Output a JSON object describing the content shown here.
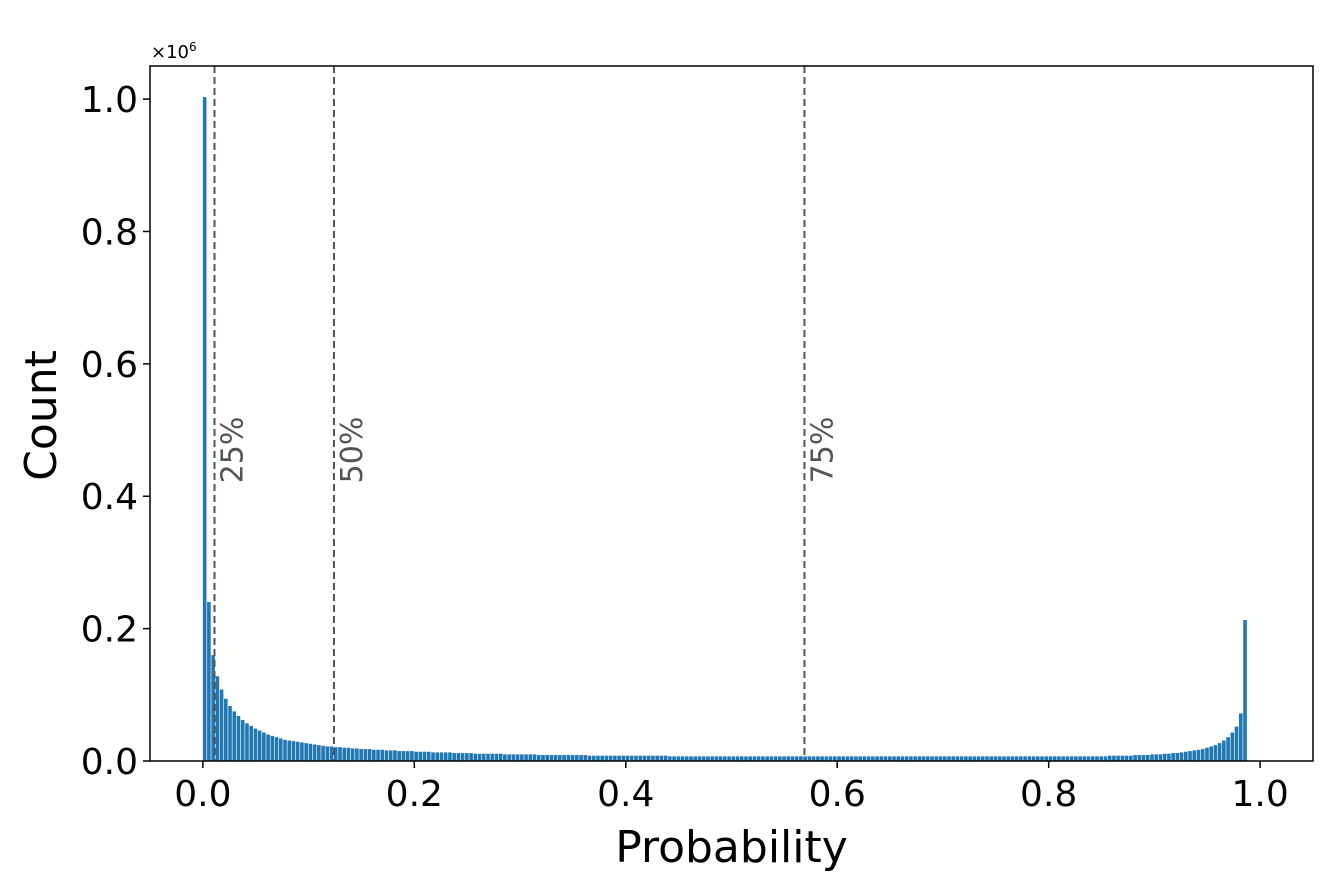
{
  "chart_data": {
    "type": "bar",
    "xlabel": "Probability",
    "ylabel": "Count",
    "y_multiplier": "×10",
    "y_multiplier_exponent": "6",
    "scale": 1000000,
    "xlim": [
      -0.05,
      1.05
    ],
    "ylim": [
      0,
      1.05
    ],
    "xticks": [
      0.0,
      0.2,
      0.4,
      0.6,
      0.8,
      1.0
    ],
    "xtick_labels": [
      "0.0",
      "0.2",
      "0.4",
      "0.6",
      "0.8",
      "1.0"
    ],
    "yticks": [
      0.0,
      0.2,
      0.4,
      0.6,
      0.8,
      1.0
    ],
    "ytick_labels": [
      "0.0",
      "0.2",
      "0.4",
      "0.6",
      "0.8",
      "1.0"
    ],
    "bar_color": "#1f77b4",
    "bins": 250,
    "series": [
      {
        "bin_centers": [
          0.002,
          0.006,
          0.01,
          0.014,
          0.018,
          0.022,
          0.026,
          0.03,
          0.034,
          0.038,
          0.042,
          0.046,
          0.05,
          0.054,
          0.058,
          0.062,
          0.066,
          0.07,
          0.074,
          0.078,
          0.082,
          0.086,
          0.09,
          0.094,
          0.098,
          0.102,
          0.106,
          0.11,
          0.114,
          0.118,
          0.122,
          0.126,
          0.13,
          0.134,
          0.138,
          0.142,
          0.146,
          0.15,
          0.154,
          0.158,
          0.162,
          0.166,
          0.17,
          0.174,
          0.178,
          0.182,
          0.186,
          0.19,
          0.194,
          0.198,
          0.202,
          0.206,
          0.21,
          0.214,
          0.218,
          0.222,
          0.226,
          0.23,
          0.234,
          0.238,
          0.242,
          0.246,
          0.25,
          0.254,
          0.258,
          0.262,
          0.266,
          0.27,
          0.274,
          0.278,
          0.282,
          0.286,
          0.29,
          0.294,
          0.298,
          0.302,
          0.306,
          0.31,
          0.314,
          0.318,
          0.322,
          0.326,
          0.33,
          0.334,
          0.338,
          0.342,
          0.346,
          0.35,
          0.354,
          0.358,
          0.362,
          0.366,
          0.37,
          0.374,
          0.378,
          0.382,
          0.386,
          0.39,
          0.394,
          0.398,
          0.402,
          0.406,
          0.41,
          0.414,
          0.418,
          0.422,
          0.426,
          0.43,
          0.434,
          0.438,
          0.442,
          0.446,
          0.45,
          0.454,
          0.458,
          0.462,
          0.466,
          0.47,
          0.474,
          0.478,
          0.482,
          0.486,
          0.49,
          0.494,
          0.498,
          0.502,
          0.506,
          0.51,
          0.514,
          0.518,
          0.522,
          0.526,
          0.53,
          0.534,
          0.538,
          0.542,
          0.546,
          0.55,
          0.554,
          0.558,
          0.562,
          0.566,
          0.57,
          0.574,
          0.578,
          0.582,
          0.586,
          0.59,
          0.594,
          0.598,
          0.602,
          0.606,
          0.61,
          0.614,
          0.618,
          0.622,
          0.626,
          0.63,
          0.634,
          0.638,
          0.642,
          0.646,
          0.65,
          0.654,
          0.658,
          0.662,
          0.666,
          0.67,
          0.674,
          0.678,
          0.682,
          0.686,
          0.69,
          0.694,
          0.698,
          0.702,
          0.706,
          0.71,
          0.714,
          0.718,
          0.722,
          0.726,
          0.73,
          0.734,
          0.738,
          0.742,
          0.746,
          0.75,
          0.754,
          0.758,
          0.762,
          0.766,
          0.77,
          0.774,
          0.778,
          0.782,
          0.786,
          0.79,
          0.794,
          0.798,
          0.802,
          0.806,
          0.81,
          0.814,
          0.818,
          0.822,
          0.826,
          0.83,
          0.834,
          0.838,
          0.842,
          0.846,
          0.85,
          0.854,
          0.858,
          0.862,
          0.866,
          0.87,
          0.874,
          0.878,
          0.882,
          0.886,
          0.89,
          0.894,
          0.898,
          0.902,
          0.906,
          0.91,
          0.914,
          0.918,
          0.922,
          0.926,
          0.93,
          0.934,
          0.938,
          0.942,
          0.946,
          0.95,
          0.954,
          0.958,
          0.962,
          0.966,
          0.97,
          0.974,
          0.978,
          0.982,
          0.986,
          0.99,
          0.994,
          0.998
        ],
        "values": [
          1.003,
          0.24,
          0.16,
          0.128,
          0.108,
          0.094,
          0.083,
          0.075,
          0.068,
          0.062,
          0.057,
          0.053,
          0.049,
          0.046,
          0.043,
          0.04,
          0.038,
          0.036,
          0.034,
          0.032,
          0.031,
          0.03,
          0.029,
          0.028,
          0.027,
          0.026,
          0.025,
          0.024,
          0.023,
          0.022,
          0.022,
          0.021,
          0.021,
          0.02,
          0.02,
          0.019,
          0.019,
          0.018,
          0.018,
          0.018,
          0.017,
          0.017,
          0.017,
          0.016,
          0.016,
          0.016,
          0.015,
          0.015,
          0.015,
          0.015,
          0.014,
          0.014,
          0.014,
          0.014,
          0.013,
          0.013,
          0.013,
          0.013,
          0.013,
          0.012,
          0.012,
          0.012,
          0.012,
          0.012,
          0.011,
          0.011,
          0.011,
          0.011,
          0.011,
          0.011,
          0.011,
          0.01,
          0.01,
          0.01,
          0.01,
          0.01,
          0.01,
          0.01,
          0.01,
          0.009,
          0.009,
          0.009,
          0.009,
          0.009,
          0.009,
          0.009,
          0.009,
          0.009,
          0.009,
          0.009,
          0.009,
          0.008,
          0.008,
          0.008,
          0.008,
          0.008,
          0.008,
          0.008,
          0.008,
          0.008,
          0.008,
          0.008,
          0.008,
          0.008,
          0.008,
          0.008,
          0.008,
          0.008,
          0.008,
          0.008,
          0.007,
          0.007,
          0.007,
          0.007,
          0.007,
          0.007,
          0.007,
          0.007,
          0.007,
          0.007,
          0.007,
          0.007,
          0.007,
          0.007,
          0.007,
          0.007,
          0.007,
          0.007,
          0.007,
          0.007,
          0.007,
          0.007,
          0.007,
          0.007,
          0.007,
          0.007,
          0.007,
          0.007,
          0.007,
          0.007,
          0.007,
          0.007,
          0.007,
          0.007,
          0.007,
          0.007,
          0.007,
          0.007,
          0.007,
          0.007,
          0.007,
          0.007,
          0.007,
          0.007,
          0.007,
          0.007,
          0.007,
          0.007,
          0.007,
          0.007,
          0.007,
          0.007,
          0.007,
          0.007,
          0.007,
          0.007,
          0.007,
          0.007,
          0.007,
          0.007,
          0.007,
          0.007,
          0.007,
          0.007,
          0.007,
          0.007,
          0.007,
          0.007,
          0.007,
          0.007,
          0.007,
          0.007,
          0.007,
          0.007,
          0.007,
          0.007,
          0.007,
          0.007,
          0.007,
          0.007,
          0.007,
          0.007,
          0.007,
          0.007,
          0.007,
          0.007,
          0.007,
          0.007,
          0.007,
          0.007,
          0.007,
          0.007,
          0.007,
          0.007,
          0.007,
          0.007,
          0.007,
          0.007,
          0.007,
          0.007,
          0.007,
          0.007,
          0.007,
          0.007,
          0.008,
          0.008,
          0.008,
          0.008,
          0.008,
          0.008,
          0.009,
          0.009,
          0.009,
          0.009,
          0.01,
          0.01,
          0.01,
          0.011,
          0.011,
          0.012,
          0.012,
          0.013,
          0.014,
          0.015,
          0.016,
          0.017,
          0.018,
          0.02,
          0.022,
          0.024,
          0.027,
          0.031,
          0.036,
          0.043,
          0.052,
          0.072,
          0.213
        ]
      }
    ],
    "quantiles": [
      {
        "label": "25%",
        "x": 0.011
      },
      {
        "label": "50%",
        "x": 0.124
      },
      {
        "label": "75%",
        "x": 0.569
      }
    ],
    "quantile_line_color": "#555555",
    "grid": false,
    "legend": "none"
  }
}
